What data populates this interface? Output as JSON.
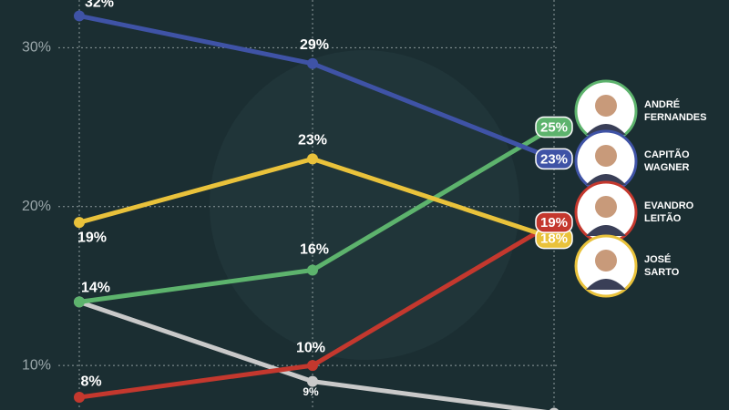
{
  "chart_data": {
    "type": "line",
    "categories": [
      null,
      null,
      null
    ],
    "ylim": [
      7.2,
      33
    ],
    "yticks": [
      {
        "value": 10,
        "label": "10%"
      },
      {
        "value": 20,
        "label": "20%"
      },
      {
        "value": 30,
        "label": "30%"
      }
    ],
    "grid": true,
    "series": [
      {
        "name": "CAPITÃO WAGNER",
        "color": "#3f53a6",
        "values": [
          32,
          29,
          23
        ],
        "value_labels": [
          "32%",
          "29%",
          "23%"
        ]
      },
      {
        "name": "JOSÉ SARTO",
        "color": "#e9c23b",
        "values": [
          19,
          23,
          18
        ],
        "value_labels": [
          "19%",
          "23%",
          "18%"
        ]
      },
      {
        "name": "ANDRÉ FERNANDES",
        "color": "#5db36d",
        "values": [
          14,
          16,
          25
        ],
        "value_labels": [
          "14%",
          "16%",
          "25%"
        ]
      },
      {
        "name": "EVANDRO LEITÃO",
        "color": "#c4382e",
        "values": [
          8,
          10,
          19
        ],
        "value_labels": [
          "8%",
          "10%",
          "19%"
        ]
      },
      {
        "color": "#c9c9c9",
        "values": [
          14,
          9,
          7
        ],
        "value_labels": [
          null,
          "9%",
          null
        ]
      }
    ]
  }
}
